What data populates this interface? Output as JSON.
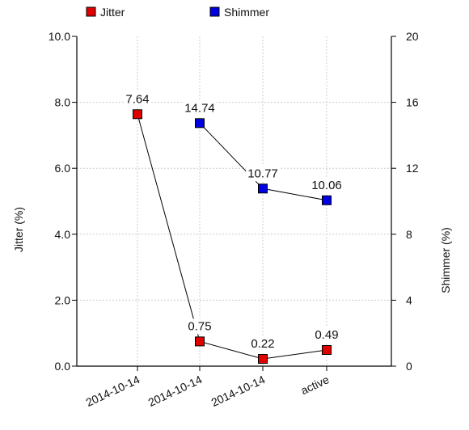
{
  "chart_data": {
    "type": "line",
    "categories": [
      "2014-10-14",
      "2014-10-14",
      "2014-10-14",
      "active"
    ],
    "legend": {
      "position": "top-left",
      "entries": [
        {
          "name": "Jitter",
          "color": "#e00000"
        },
        {
          "name": "Shimmer",
          "color": "#0000e0"
        }
      ]
    },
    "y_left": {
      "label": "Jitter (%)",
      "range": [
        0,
        10
      ],
      "ticks": [
        "0.0",
        "2.0",
        "4.0",
        "6.0",
        "8.0",
        "10.0"
      ]
    },
    "y_right": {
      "label": "Shimmer (%)",
      "range": [
        0,
        20
      ],
      "ticks": [
        "0",
        "4",
        "8",
        "12",
        "16",
        "20"
      ]
    },
    "grid": true,
    "series": [
      {
        "name": "Jitter",
        "axis": "left",
        "color": "#e00000",
        "segments": [
          {
            "points": [
              {
                "x": 0,
                "y": 7.64,
                "label": "7.64"
              },
              {
                "x": 1,
                "y": 0.75,
                "label": "0.75"
              },
              {
                "x": 2,
                "y": 0.22,
                "label": "0.22"
              },
              {
                "x": 3,
                "y": 0.49,
                "label": "0.49"
              }
            ]
          }
        ]
      },
      {
        "name": "Shimmer",
        "axis": "right",
        "color": "#0000e0",
        "segments": [
          {
            "points": [
              {
                "x": 1,
                "y": 14.74,
                "label": "14.74"
              },
              {
                "x": 2,
                "y": 10.77,
                "label": "10.77"
              },
              {
                "x": 3,
                "y": 10.06,
                "label": "10.06"
              }
            ]
          }
        ]
      }
    ]
  }
}
